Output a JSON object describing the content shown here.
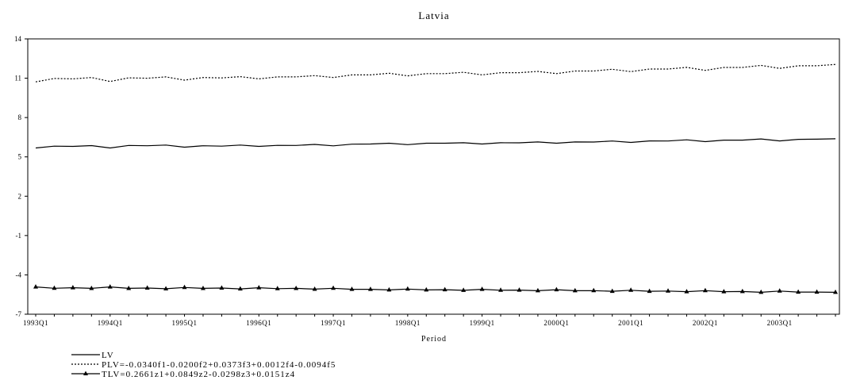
{
  "chart_data": {
    "type": "line",
    "title": "Latvia",
    "xlabel": "Period",
    "ylabel": "",
    "ylim": [
      -7,
      14
    ],
    "yticks": [
      14,
      11,
      8,
      5,
      2,
      -1,
      -4,
      -7
    ],
    "x": [
      "1993Q1",
      "1993Q2",
      "1993Q3",
      "1993Q4",
      "1994Q1",
      "1994Q2",
      "1994Q3",
      "1994Q4",
      "1995Q1",
      "1995Q2",
      "1995Q3",
      "1995Q4",
      "1996Q1",
      "1996Q2",
      "1996Q3",
      "1996Q4",
      "1997Q1",
      "1997Q2",
      "1997Q3",
      "1997Q4",
      "1998Q1",
      "1998Q2",
      "1998Q3",
      "1998Q4",
      "1999Q1",
      "1999Q2",
      "1999Q3",
      "1999Q4",
      "2000Q1",
      "2000Q2",
      "2000Q3",
      "2000Q4",
      "2001Q1",
      "2001Q2",
      "2001Q3",
      "2001Q4",
      "2002Q1",
      "2002Q2",
      "2002Q3",
      "2002Q4",
      "2003Q1",
      "2003Q2",
      "2003Q3",
      "2003Q4"
    ],
    "xtick_labels": [
      "1993Q1",
      "1994Q1",
      "1995Q1",
      "1996Q1",
      "1997Q1",
      "1998Q1",
      "1999Q1",
      "2000Q1",
      "2001Q1",
      "2002Q1",
      "2003Q1"
    ],
    "grid": false,
    "legend_position": "bottom-left",
    "series": [
      {
        "name": "LV",
        "style": "solid",
        "color": "#000000",
        "values": [
          5.68,
          5.82,
          5.8,
          5.86,
          5.68,
          5.87,
          5.85,
          5.9,
          5.74,
          5.85,
          5.82,
          5.9,
          5.8,
          5.88,
          5.87,
          5.95,
          5.84,
          5.97,
          5.98,
          6.04,
          5.93,
          6.04,
          6.04,
          6.08,
          5.98,
          6.08,
          6.07,
          6.14,
          6.04,
          6.14,
          6.13,
          6.21,
          6.1,
          6.22,
          6.21,
          6.3,
          6.16,
          6.28,
          6.28,
          6.37,
          6.22,
          6.34,
          6.35,
          6.38
        ]
      },
      {
        "name": "PLV=-0.0340f1-0.0200f2+0.0373f3+0.0012f4-0.0094f5",
        "style": "dotted",
        "color": "#000000",
        "values": [
          10.72,
          10.98,
          10.95,
          11.05,
          10.75,
          11.03,
          11.0,
          11.1,
          10.85,
          11.05,
          11.02,
          11.12,
          10.95,
          11.1,
          11.1,
          11.2,
          11.05,
          11.25,
          11.25,
          11.38,
          11.18,
          11.35,
          11.35,
          11.45,
          11.25,
          11.42,
          11.42,
          11.52,
          11.35,
          11.55,
          11.55,
          11.68,
          11.5,
          11.7,
          11.7,
          11.83,
          11.6,
          11.82,
          11.82,
          11.98,
          11.75,
          11.95,
          11.95,
          12.05
        ]
      },
      {
        "name": "TLV=0.2661z1+0.0849z2-0.0298z3+0.0151z4",
        "style": "solid-triangle",
        "color": "#000000",
        "values": [
          -4.92,
          -5.02,
          -4.98,
          -5.03,
          -4.92,
          -5.03,
          -5.0,
          -5.06,
          -4.96,
          -5.03,
          -5.0,
          -5.07,
          -4.98,
          -5.05,
          -5.03,
          -5.09,
          -5.02,
          -5.1,
          -5.1,
          -5.15,
          -5.08,
          -5.15,
          -5.13,
          -5.18,
          -5.1,
          -5.17,
          -5.16,
          -5.21,
          -5.13,
          -5.21,
          -5.2,
          -5.25,
          -5.17,
          -5.25,
          -5.23,
          -5.28,
          -5.2,
          -5.28,
          -5.27,
          -5.33,
          -5.23,
          -5.31,
          -5.31,
          -5.33
        ]
      }
    ]
  }
}
